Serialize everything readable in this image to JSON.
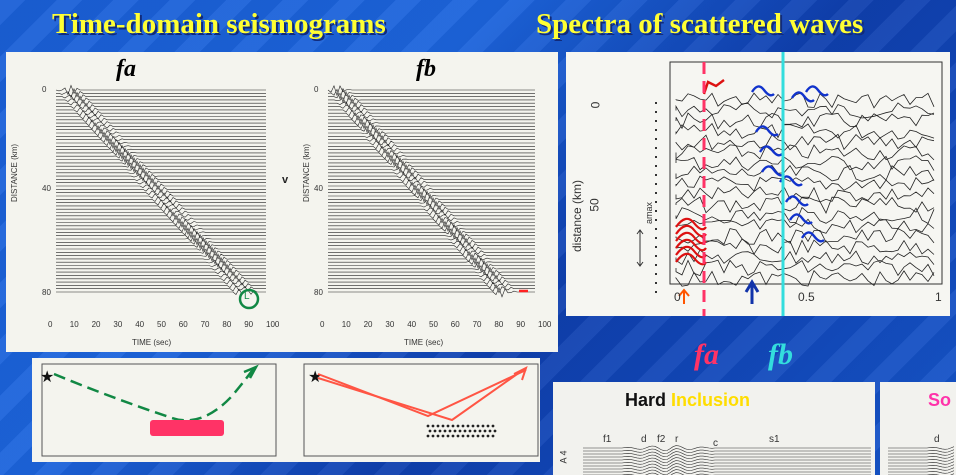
{
  "titles": {
    "left": "Time-domain seismograms",
    "right": "Spectra of scattered waves"
  },
  "seismogram_panels": [
    {
      "label": "fa",
      "label_color": "#ff3366",
      "x_ticks": [
        "0",
        "10",
        "20",
        "30",
        "40",
        "50",
        "60",
        "70",
        "80",
        "90",
        "100"
      ],
      "x_axis_title": "TIME (sec)",
      "y_axis_title": "DISTANCE (km)",
      "y_ticks": [
        "0",
        "40",
        "80"
      ],
      "marker": "L"
    },
    {
      "label": "fb",
      "label_color": "#33dddd",
      "x_ticks": [
        "0",
        "10",
        "20",
        "30",
        "40",
        "50",
        "60",
        "70",
        "80",
        "90",
        "100"
      ],
      "x_axis_title": "TIME (sec)",
      "y_axis_title": "DISTANCE (km)",
      "y_ticks": [
        "0",
        "40",
        "80"
      ]
    }
  ],
  "between_label": "v",
  "spectra": {
    "y_axis_title": "distance (km)",
    "y_ticks": [
      "0",
      "50"
    ],
    "x_ticks": [
      "0",
      "0.5",
      "1"
    ],
    "legend_text": "amax",
    "fa_label": "fa",
    "fb_label": "fb",
    "fa_color": "#ff3366",
    "fb_color": "#33dddd"
  },
  "inclusion": {
    "hard": "Hard",
    "inclusion": "Inclusion",
    "soft_partial": "So",
    "trace_labels": [
      "f1",
      "d",
      "f2",
      "r",
      "c",
      "s1"
    ],
    "axis_label": "A 4",
    "right_label": "d"
  },
  "colors": {
    "title": "#ffff33",
    "fa": "#ff3366",
    "fb": "#33dddd"
  }
}
